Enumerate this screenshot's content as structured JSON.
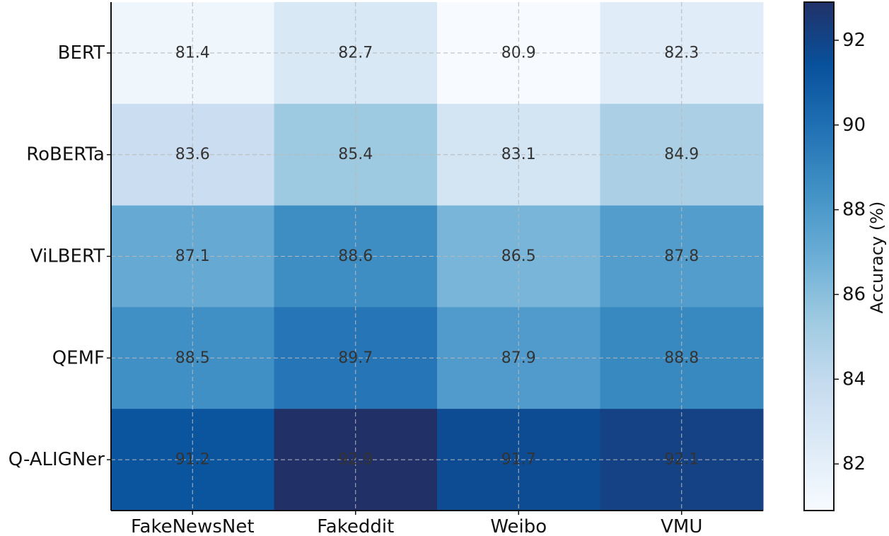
{
  "chart_data": {
    "type": "heatmap",
    "title": "",
    "xlabel": "",
    "ylabel": "",
    "x_categories": [
      "FakeNewsNet",
      "Fakeddit",
      "Weibo",
      "VMU"
    ],
    "y_categories": [
      "BERT",
      "RoBERTa",
      "ViLBERT",
      "QEMF",
      "Q-ALIGNer"
    ],
    "values": [
      [
        81.4,
        82.7,
        80.9,
        82.3
      ],
      [
        83.6,
        85.4,
        83.1,
        84.9
      ],
      [
        87.1,
        88.6,
        86.5,
        87.8
      ],
      [
        88.5,
        89.7,
        87.9,
        88.8
      ],
      [
        91.2,
        92.9,
        91.7,
        92.1
      ]
    ],
    "value_format": "0.0",
    "colormap": "Blues",
    "vmin": 80.9,
    "vmax": 92.9,
    "grid": true,
    "colorbar": {
      "label": "Accuracy (%)",
      "ticks": [
        82,
        84,
        86,
        88,
        90,
        92
      ],
      "position": "right"
    }
  }
}
